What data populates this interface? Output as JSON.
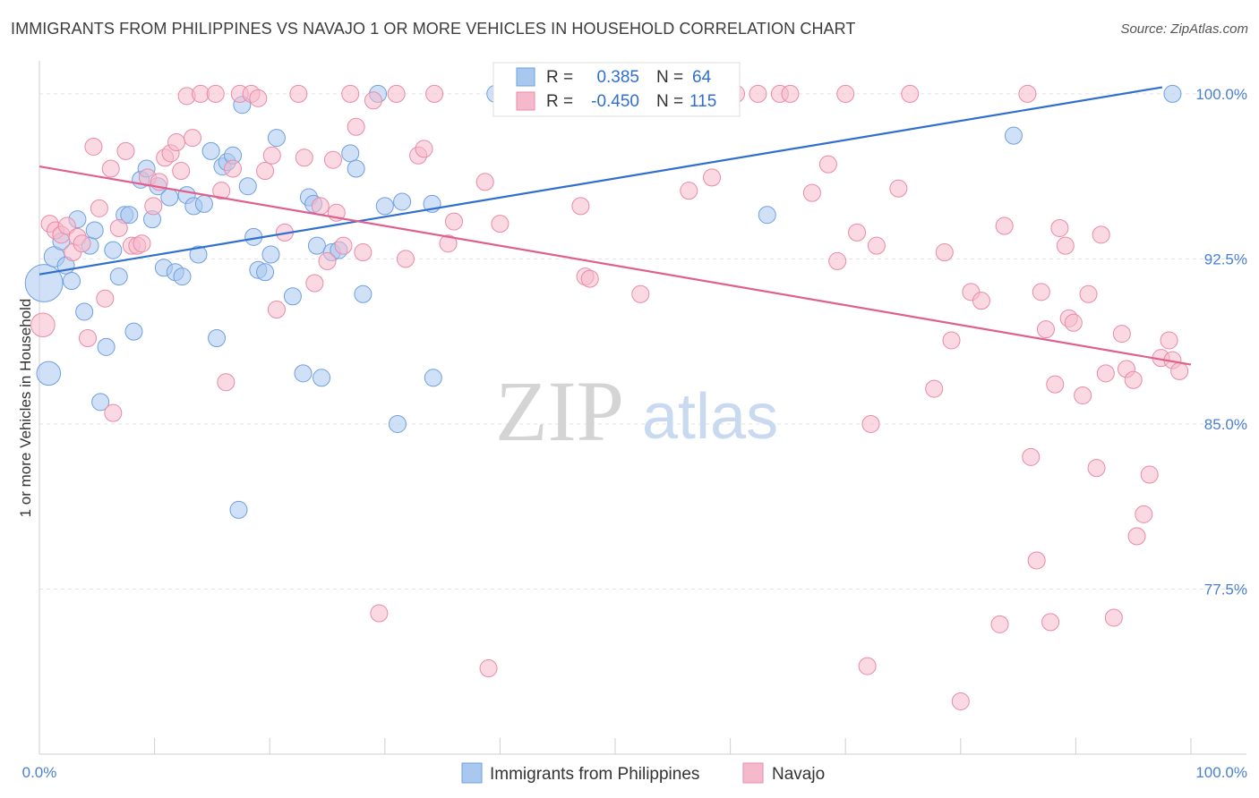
{
  "title": "IMMIGRANTS FROM PHILIPPINES VS NAVAJO 1 OR MORE VEHICLES IN HOUSEHOLD CORRELATION CHART",
  "source": "Source: ZipAtlas.com",
  "watermark": {
    "zip": "ZIP",
    "atlas": "atlas"
  },
  "colors": {
    "blue": "#a9c8f0",
    "blue_stroke": "#6f9fdf",
    "blue_line": "#2f6fcf",
    "pink": "#f6b9cc",
    "pink_stroke": "#e98aa8",
    "pink_line": "#e0608d",
    "tick_text": "#4a7fd4"
  },
  "legend": {
    "rows": [
      {
        "r_label": "R =",
        "r_value": "0.385",
        "n_label": "N =",
        "n_value": "64"
      },
      {
        "r_label": "R =",
        "r_value": "-0.450",
        "n_label": "N =",
        "n_value": "115"
      }
    ]
  },
  "chart_data": {
    "type": "scatter",
    "xlabel": "",
    "ylabel": "1 or more Vehicles in Household",
    "xlim": [
      0,
      100
    ],
    "ylim": [
      70,
      101.5
    ],
    "x_tick_labels": [
      "0.0%",
      "100.0%"
    ],
    "y_ticks": [
      {
        "value": 100,
        "label": "100.0%"
      },
      {
        "value": 92.5,
        "label": "92.5%"
      },
      {
        "value": 85,
        "label": "85.0%"
      },
      {
        "value": 77.5,
        "label": "77.5%"
      }
    ],
    "grid": true,
    "legend_position": "bottom",
    "series": [
      {
        "name": "Immigrants from Philippines",
        "color": "#a9c8f0",
        "trend": {
          "x": [
            0,
            97.5
          ],
          "y": [
            91.8,
            100.3
          ]
        },
        "points": [
          [
            0.4,
            91.4,
            2.2
          ],
          [
            0.8,
            87.3,
            1.4
          ],
          [
            1.3,
            92.6,
            1.2
          ],
          [
            1.9,
            93.3,
            1
          ],
          [
            2.3,
            92.2,
            1
          ],
          [
            2.8,
            91.5,
            1
          ],
          [
            3.3,
            94.3,
            1
          ],
          [
            3.9,
            90.1,
            1
          ],
          [
            4.4,
            93.1,
            1
          ],
          [
            4.8,
            93.8,
            1
          ],
          [
            5.3,
            86.0,
            1
          ],
          [
            5.8,
            88.5,
            1
          ],
          [
            6.4,
            92.9,
            1
          ],
          [
            6.9,
            91.7,
            1
          ],
          [
            7.4,
            94.5,
            1
          ],
          [
            7.8,
            94.5,
            1
          ],
          [
            8.2,
            89.2,
            1
          ],
          [
            8.8,
            96.1,
            1
          ],
          [
            9.3,
            96.6,
            1
          ],
          [
            9.8,
            94.3,
            1
          ],
          [
            10.3,
            95.8,
            1
          ],
          [
            10.8,
            92.1,
            1
          ],
          [
            11.3,
            95.3,
            1
          ],
          [
            11.8,
            91.9,
            1
          ],
          [
            12.4,
            91.7,
            1
          ],
          [
            12.8,
            95.4,
            1
          ],
          [
            13.4,
            94.9,
            1
          ],
          [
            13.8,
            92.7,
            1
          ],
          [
            14.3,
            95.0,
            1
          ],
          [
            14.9,
            97.4,
            1
          ],
          [
            15.4,
            88.9,
            1
          ],
          [
            15.9,
            96.7,
            1
          ],
          [
            16.3,
            96.9,
            1
          ],
          [
            16.8,
            97.2,
            1
          ],
          [
            17.3,
            81.1,
            1
          ],
          [
            17.6,
            99.5,
            1
          ],
          [
            18.1,
            95.8,
            1
          ],
          [
            18.6,
            93.5,
            1
          ],
          [
            19.0,
            92.0,
            1
          ],
          [
            19.6,
            91.9,
            1
          ],
          [
            20.1,
            92.7,
            1
          ],
          [
            20.6,
            98.0,
            1
          ],
          [
            22.0,
            90.8,
            1
          ],
          [
            22.9,
            87.3,
            1
          ],
          [
            23.4,
            95.3,
            1
          ],
          [
            23.8,
            95.0,
            1
          ],
          [
            24.1,
            93.1,
            1
          ],
          [
            24.5,
            87.1,
            1
          ],
          [
            25.4,
            92.8,
            1
          ],
          [
            26.0,
            92.9,
            1
          ],
          [
            27.0,
            97.3,
            1
          ],
          [
            27.5,
            96.6,
            1
          ],
          [
            28.1,
            90.9,
            1
          ],
          [
            29.4,
            100.0,
            1
          ],
          [
            30.0,
            94.9,
            1
          ],
          [
            31.1,
            85.0,
            1
          ],
          [
            31.5,
            95.1,
            1
          ],
          [
            34.1,
            95.0,
            1
          ],
          [
            34.2,
            87.1,
            1
          ],
          [
            39.6,
            100.0,
            1
          ],
          [
            41.2,
            100.0,
            1
          ],
          [
            63.2,
            94.5,
            1
          ],
          [
            84.6,
            98.1,
            1
          ],
          [
            98.4,
            100.0,
            1
          ]
        ]
      },
      {
        "name": "Navajo",
        "color": "#f6b9cc",
        "trend": {
          "x": [
            0,
            100
          ],
          "y": [
            96.7,
            87.7
          ]
        },
        "points": [
          [
            0.3,
            89.5,
            1.4
          ],
          [
            0.9,
            94.1,
            1
          ],
          [
            1.4,
            93.8,
            1
          ],
          [
            1.9,
            93.6,
            1
          ],
          [
            2.4,
            94.0,
            1
          ],
          [
            2.9,
            92.8,
            1
          ],
          [
            3.3,
            93.5,
            1
          ],
          [
            3.7,
            93.2,
            1
          ],
          [
            4.2,
            88.9,
            1
          ],
          [
            4.7,
            97.6,
            1
          ],
          [
            5.2,
            94.8,
            1
          ],
          [
            5.7,
            90.7,
            1
          ],
          [
            6.2,
            96.6,
            1
          ],
          [
            6.4,
            85.5,
            1
          ],
          [
            6.9,
            93.9,
            1
          ],
          [
            7.5,
            97.4,
            1
          ],
          [
            8.0,
            93.1,
            1
          ],
          [
            8.5,
            93.1,
            1
          ],
          [
            8.9,
            93.2,
            1
          ],
          [
            9.4,
            96.2,
            1
          ],
          [
            9.9,
            94.9,
            1
          ],
          [
            10.4,
            96.0,
            1
          ],
          [
            10.9,
            97.1,
            1
          ],
          [
            11.4,
            97.3,
            1
          ],
          [
            11.9,
            97.8,
            1
          ],
          [
            12.3,
            96.5,
            1
          ],
          [
            12.8,
            99.9,
            1
          ],
          [
            13.3,
            98.0,
            1
          ],
          [
            14.0,
            100.0,
            1
          ],
          [
            15.3,
            100.0,
            1
          ],
          [
            15.8,
            95.6,
            1
          ],
          [
            16.2,
            86.9,
            1
          ],
          [
            16.8,
            96.6,
            1
          ],
          [
            17.4,
            100.0,
            1
          ],
          [
            18.4,
            100.0,
            1
          ],
          [
            19.0,
            99.8,
            1
          ],
          [
            19.6,
            96.5,
            1
          ],
          [
            20.2,
            97.2,
            1
          ],
          [
            20.6,
            90.2,
            1
          ],
          [
            21.3,
            93.7,
            1
          ],
          [
            22.5,
            100.0,
            1
          ],
          [
            23.0,
            97.1,
            1
          ],
          [
            23.9,
            91.4,
            1
          ],
          [
            24.4,
            94.9,
            1
          ],
          [
            25.0,
            92.4,
            1
          ],
          [
            25.5,
            97.0,
            1
          ],
          [
            25.8,
            94.6,
            1
          ],
          [
            26.4,
            93.1,
            1
          ],
          [
            27.0,
            100.0,
            1
          ],
          [
            27.5,
            98.5,
            1
          ],
          [
            28.1,
            92.8,
            1
          ],
          [
            29.0,
            99.7,
            1
          ],
          [
            29.5,
            76.4,
            1
          ],
          [
            31.0,
            100.0,
            1
          ],
          [
            31.8,
            92.5,
            1
          ],
          [
            32.9,
            97.2,
            1
          ],
          [
            33.4,
            97.5,
            1
          ],
          [
            34.3,
            100.0,
            1
          ],
          [
            35.5,
            93.2,
            1
          ],
          [
            36.0,
            94.2,
            1
          ],
          [
            38.7,
            96.0,
            1
          ],
          [
            39.0,
            73.9,
            1
          ],
          [
            40.0,
            94.1,
            1
          ],
          [
            42.1,
            100.0,
            1
          ],
          [
            45.6,
            100.0,
            1
          ],
          [
            46.3,
            100.0,
            1
          ],
          [
            47.0,
            94.9,
            1
          ],
          [
            47.4,
            91.7,
            1
          ],
          [
            47.8,
            91.6,
            1
          ],
          [
            50.0,
            100.0,
            1
          ],
          [
            52.2,
            90.9,
            1
          ],
          [
            54.6,
            100.0,
            1
          ],
          [
            56.4,
            95.6,
            1
          ],
          [
            58.4,
            96.2,
            1
          ],
          [
            60.5,
            100.0,
            1
          ],
          [
            62.4,
            100.0,
            1
          ],
          [
            64.3,
            100.0,
            1
          ],
          [
            65.2,
            100.0,
            1
          ],
          [
            67.1,
            95.5,
            1
          ],
          [
            68.5,
            96.8,
            1
          ],
          [
            69.3,
            92.4,
            1
          ],
          [
            70.0,
            100.0,
            1
          ],
          [
            71.0,
            93.7,
            1
          ],
          [
            71.9,
            74.0,
            1
          ],
          [
            72.2,
            85.0,
            1
          ],
          [
            74.6,
            95.7,
            1
          ],
          [
            75.6,
            100.0,
            1
          ],
          [
            77.7,
            86.6,
            1
          ],
          [
            78.6,
            92.8,
            1
          ],
          [
            79.2,
            88.8,
            1
          ],
          [
            80.0,
            72.4,
            1
          ],
          [
            80.9,
            91.0,
            1
          ],
          [
            81.8,
            90.6,
            1
          ],
          [
            83.4,
            75.9,
            1
          ],
          [
            83.8,
            94.0,
            1
          ],
          [
            85.8,
            100.0,
            1
          ],
          [
            86.1,
            83.5,
            1
          ],
          [
            86.6,
            78.8,
            1
          ],
          [
            87.0,
            91.0,
            1
          ],
          [
            87.4,
            89.3,
            1
          ],
          [
            87.8,
            76.0,
            1
          ],
          [
            88.2,
            86.8,
            1
          ],
          [
            88.6,
            93.9,
            1
          ],
          [
            89.1,
            93.1,
            1
          ],
          [
            89.4,
            89.8,
            1
          ],
          [
            89.8,
            89.6,
            1
          ],
          [
            90.6,
            86.3,
            1
          ],
          [
            91.1,
            90.9,
            1
          ],
          [
            91.8,
            83.0,
            1
          ],
          [
            92.2,
            93.6,
            1
          ],
          [
            92.6,
            87.3,
            1
          ],
          [
            93.3,
            76.2,
            1
          ],
          [
            94.0,
            89.1,
            1
          ],
          [
            94.4,
            87.5,
            1
          ],
          [
            95.0,
            87.0,
            1
          ],
          [
            95.3,
            79.9,
            1
          ],
          [
            95.9,
            80.9,
            1
          ],
          [
            96.4,
            82.7,
            1
          ],
          [
            97.4,
            88.0,
            1
          ],
          [
            98.1,
            88.8,
            1
          ],
          [
            98.4,
            87.9,
            1
          ],
          [
            99.0,
            87.4,
            1
          ],
          [
            72.7,
            93.1,
            1
          ]
        ]
      }
    ]
  },
  "bottom_legend": [
    {
      "label": "Immigrants from Philippines"
    },
    {
      "label": "Navajo"
    }
  ]
}
